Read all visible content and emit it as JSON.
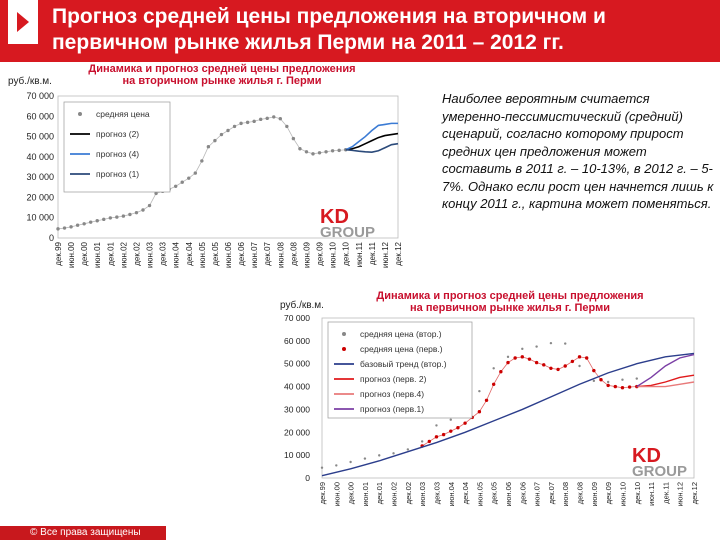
{
  "header": {
    "title": "Прогноз средней цены предложения на вторичном и первичном рынке жилья Перми на 2011 – 2012 гг."
  },
  "description": "Наиболее вероятным считается умеренно-пессимистический (средний) сценарий, согласно которому прирост средних цен предложения может составить в 2011 г. – 10-13%, в 2012 г. – 5-7%. Однако если рост цен начнется лишь к концу 2011 г., картина может поменяться.",
  "footer": {
    "text": "© Все права защищены"
  },
  "colors": {
    "header_bg": "#d71920",
    "secondary": "#888888",
    "primary": "#cc0000",
    "forecast_blue": "#3b7bd4",
    "forecast_black": "#000000",
    "forecast_darkblue": "#2b4a7a",
    "trend": "#2c3e8c",
    "forecast_red2": "#e0191b",
    "forecast_pink": "#e87a7a",
    "forecast_purple": "#7b3fa5"
  },
  "chart_data": [
    {
      "type": "line",
      "title": "Динамика и прогноз средней цены предложения на вторичном рынке жилья г. Перми",
      "ylabel": "руб./кв.м.",
      "ylim": [
        0,
        70000
      ],
      "yticks": [
        "0",
        "10 000",
        "20 000",
        "30 000",
        "40 000",
        "50 000",
        "60 000",
        "70 000"
      ],
      "xticks": [
        "дек.99",
        "июн.00",
        "дек.00",
        "июн.01",
        "дек.01",
        "июн.02",
        "дек.02",
        "июн.03",
        "дек.03",
        "июн.04",
        "дек.04",
        "июн.05",
        "дек.05",
        "июн.06",
        "дек.06",
        "июн.07",
        "дек.07",
        "июн.08",
        "дек.08",
        "июн.09",
        "дек.09",
        "июн.10",
        "дек.10",
        "июн.11",
        "дек.11",
        "июн.12",
        "дек.12"
      ],
      "legend": [
        "средняя цена",
        "прогноз (2)",
        "прогноз (4)",
        "прогноз (1)"
      ],
      "legend_placement": "top-left",
      "series": [
        {
          "name": "средняя цена",
          "style": "dotted",
          "x": [
            0,
            0.5,
            1,
            1.5,
            2,
            2.5,
            3,
            3.5,
            4,
            4.5,
            5,
            5.5,
            6,
            6.5,
            7,
            7.5,
            8,
            8.5,
            9,
            9.5,
            10,
            10.5,
            11,
            11.5,
            12,
            12.5,
            13,
            13.5,
            14,
            14.5,
            15,
            15.5,
            16,
            16.5,
            17,
            17.5,
            18,
            18.5,
            19,
            19.5,
            20,
            20.5,
            21,
            21.5,
            22
          ],
          "y": [
            4500,
            4900,
            5500,
            6300,
            7000,
            7800,
            8500,
            9200,
            9900,
            10300,
            10800,
            11600,
            12500,
            13800,
            16000,
            22000,
            23000,
            24000,
            25500,
            27500,
            29500,
            32000,
            38000,
            45000,
            48000,
            51000,
            53000,
            55000,
            56500,
            57000,
            57500,
            58500,
            59000,
            59700,
            58800,
            55000,
            49000,
            44000,
            42500,
            41500,
            42000,
            42500,
            43000,
            43200,
            43500
          ]
        },
        {
          "name": "прогноз (2)",
          "style": "solid",
          "color_key": "forecast_black",
          "x": [
            22,
            22.5,
            23,
            23.5,
            24,
            24.5,
            25,
            25.5,
            26
          ],
          "y": [
            43500,
            44000,
            45000,
            46500,
            48000,
            49500,
            50500,
            51000,
            51500
          ]
        },
        {
          "name": "прогноз (4)",
          "style": "solid",
          "color_key": "forecast_blue",
          "x": [
            22,
            22.5,
            23,
            23.5,
            24,
            24.5,
            25,
            25.5,
            26
          ],
          "y": [
            43500,
            45000,
            47500,
            50000,
            53000,
            55500,
            56000,
            56500,
            56500
          ]
        },
        {
          "name": "прогноз (1)",
          "style": "solid",
          "color_key": "forecast_darkblue",
          "x": [
            22,
            22.5,
            23,
            23.5,
            24,
            24.5,
            25,
            25.5,
            26
          ],
          "y": [
            43500,
            43200,
            42800,
            42500,
            42300,
            43000,
            44500,
            46000,
            46500
          ]
        }
      ]
    },
    {
      "type": "line",
      "title": "Динамика и прогноз средней цены предложения на первичном рынке жилья г. Перми",
      "ylabel": "руб./кв.м.",
      "ylim": [
        0,
        70000
      ],
      "yticks": [
        "0",
        "10 000",
        "20 000",
        "30 000",
        "40 000",
        "50 000",
        "60 000",
        "70 000"
      ],
      "xticks": [
        "дек.99",
        "июн.00",
        "дек.00",
        "июн.01",
        "дек.01",
        "июн.02",
        "дек.02",
        "июн.03",
        "дек.03",
        "июн.04",
        "дек.04",
        "июн.05",
        "дек.05",
        "июн.06",
        "дек.06",
        "июн.07",
        "дек.07",
        "июн.08",
        "дек.08",
        "июн.09",
        "дек.09",
        "июн.10",
        "дек.10",
        "июн.11",
        "дек.11",
        "июн.12",
        "дек.12"
      ],
      "legend": [
        "средняя цена (втор.)",
        "средняя цена (перв.)",
        "базовый тренд (втор.)",
        "прогноз (перв. 2)",
        "прогноз (перв.4)",
        "прогноз (перв.1)"
      ],
      "legend_placement": "top-left",
      "series": [
        {
          "name": "средняя цена (втор.)",
          "style": "dotted-small",
          "color_key": "secondary",
          "x": [
            0,
            1,
            2,
            3,
            4,
            5,
            6,
            7,
            8,
            9,
            10,
            11,
            12,
            13,
            14,
            15,
            16,
            17,
            18,
            19,
            20,
            21,
            22
          ],
          "y": [
            4500,
            5500,
            7000,
            8500,
            9900,
            10800,
            12500,
            16000,
            23000,
            25500,
            29500,
            38000,
            48000,
            53000,
            56500,
            57500,
            59000,
            58800,
            49000,
            42500,
            42000,
            43000,
            43500
          ]
        },
        {
          "name": "средняя цена (перв.)",
          "style": "dotted",
          "color_key": "primary",
          "x": [
            7,
            7.5,
            8,
            8.5,
            9,
            9.5,
            10,
            10.5,
            11,
            11.5,
            12,
            12.5,
            13,
            13.5,
            14,
            14.5,
            15,
            15.5,
            16,
            16.5,
            17,
            17.5,
            18,
            18.5,
            19,
            19.5,
            20,
            20.5,
            21,
            21.5,
            22
          ],
          "y": [
            14000,
            16000,
            18000,
            19000,
            20500,
            22000,
            24000,
            26500,
            29000,
            34000,
            41000,
            46500,
            50500,
            52500,
            53000,
            52000,
            50500,
            49500,
            48000,
            47500,
            49000,
            51000,
            53000,
            52500,
            47000,
            43000,
            40500,
            40000,
            39500,
            39800,
            40000
          ]
        },
        {
          "name": "базовый тренд (втор.)",
          "style": "solid",
          "color_key": "trend",
          "x": [
            0,
            2,
            4,
            6,
            8,
            10,
            12,
            14,
            16,
            18,
            20,
            22,
            24,
            26
          ],
          "y": [
            1000,
            4000,
            7500,
            11500,
            15500,
            20000,
            25000,
            30000,
            35500,
            41000,
            46000,
            50000,
            53000,
            54500
          ]
        },
        {
          "name": "прогноз (перв. 2)",
          "style": "solid",
          "color_key": "forecast_red2",
          "x": [
            22,
            23,
            24,
            25,
            26
          ],
          "y": [
            40000,
            40500,
            42000,
            44000,
            45000
          ]
        },
        {
          "name": "прогноз (перв.4)",
          "style": "solid",
          "color_key": "forecast_pink",
          "x": [
            22,
            23,
            24,
            25,
            26
          ],
          "y": [
            40000,
            40000,
            40000,
            41000,
            42000
          ]
        },
        {
          "name": "прогноз (перв.1)",
          "style": "solid",
          "color_key": "forecast_purple",
          "x": [
            22,
            23,
            24,
            25,
            26
          ],
          "y": [
            40000,
            44000,
            49000,
            52500,
            54000
          ]
        }
      ]
    }
  ]
}
